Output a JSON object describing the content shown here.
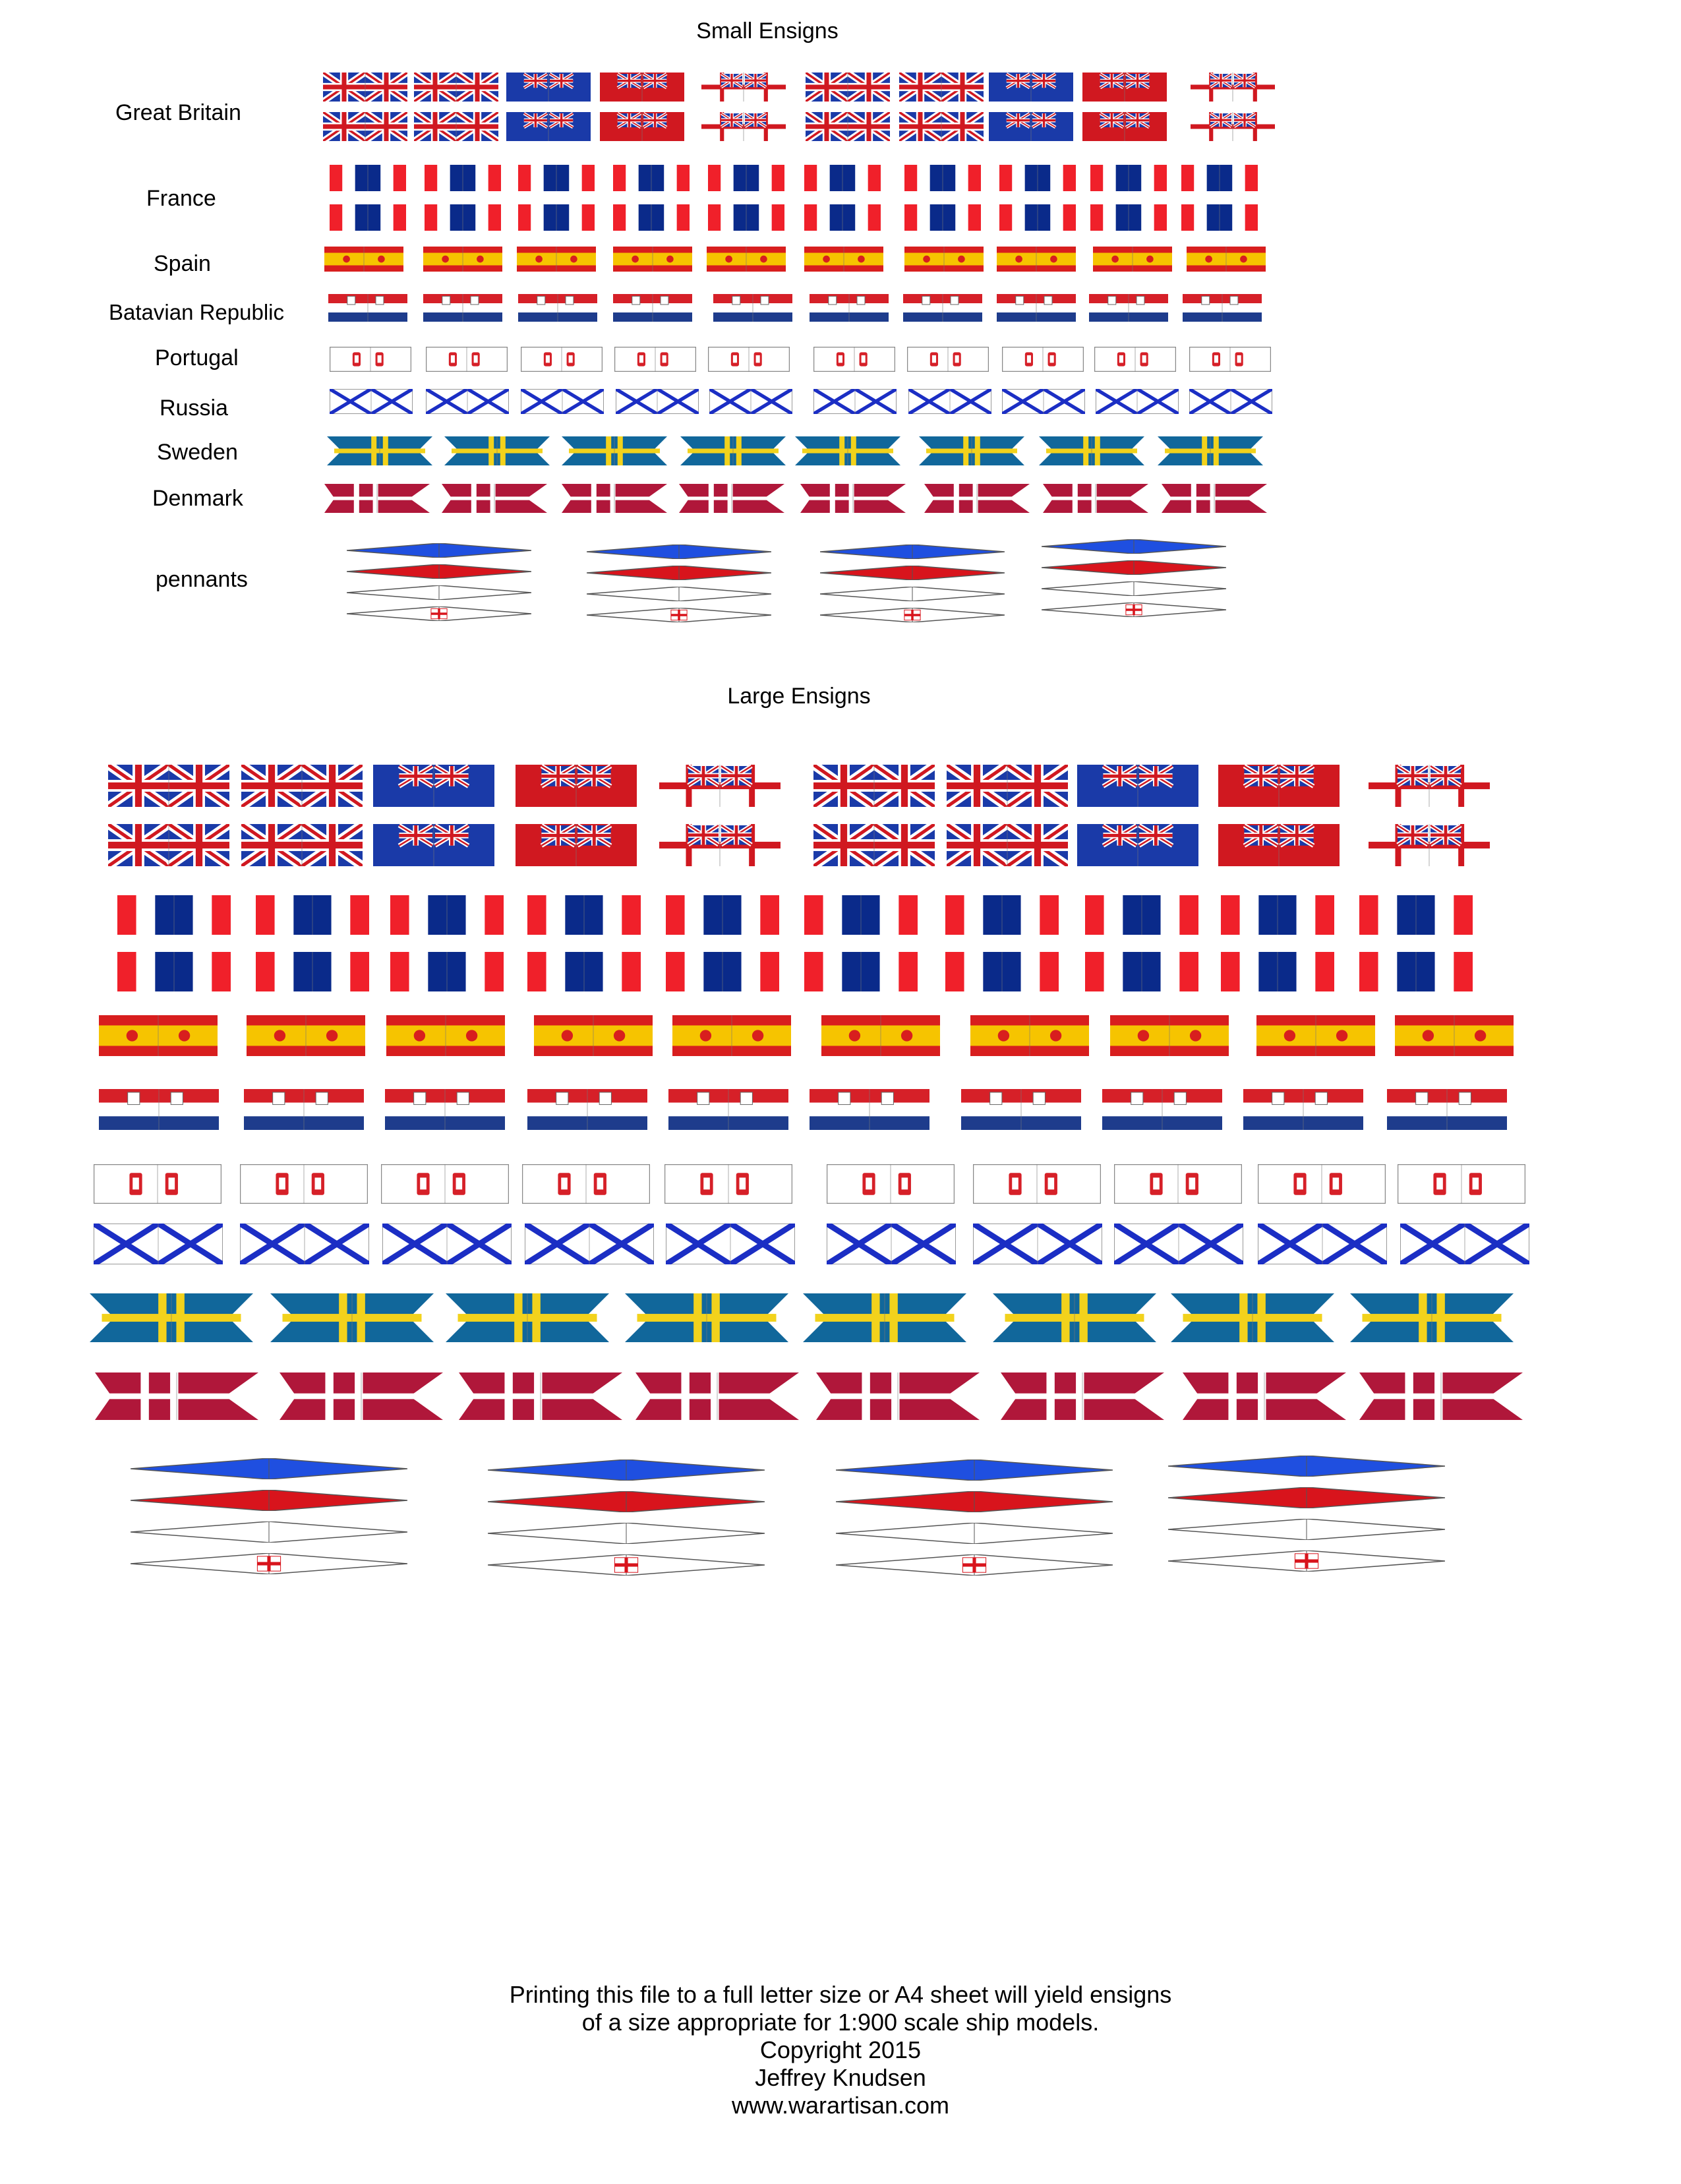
{
  "small_section": {
    "title": "Small Ensigns",
    "labels": {
      "great_britain": "Great Britain",
      "france": "France",
      "spain": "Spain",
      "batavian_republic": "Batavian Republic",
      "portugal": "Portugal",
      "russia": "Russia",
      "sweden": "Sweden",
      "denmark": "Denmark",
      "pennants": "pennants"
    }
  },
  "large_section": {
    "title": "Large Ensigns"
  },
  "footer": {
    "line1": "Printing this file to a full letter size or A4 sheet will yield ensigns",
    "line2": "of a size appropriate for 1:900 scale ship models.",
    "line3": "Copyright 2015",
    "line4": "Jeffrey Knudsen",
    "line5": "www.warartisan.com"
  },
  "colors": {
    "british_red": "#d01820",
    "british_blue": "#1a3aa8",
    "french_blue": "#0a2a8a",
    "french_red": "#f0202a",
    "spain_red": "#d81e1e",
    "spain_yellow": "#f6c400",
    "dutch_red": "#d62028",
    "dutch_blue": "#1e3c8c",
    "russia_blue": "#1b2ec4",
    "sweden_blue": "#11679b",
    "sweden_yellow": "#f2d21c",
    "denmark_red": "#b0173a",
    "pennant_blue": "#1f4fe0",
    "pennant_red": "#d8141c"
  },
  "gb_ensign_pattern": [
    "union-jack",
    "union-jack",
    "blue-ensign",
    "red-ensign",
    "white-ensign",
    "union-jack",
    "union-jack",
    "blue-ensign",
    "red-ensign",
    "white-ensign"
  ],
  "pennant_set": [
    "blue-pennant",
    "red-pennant",
    "white-pennant",
    "st-george-pennant"
  ]
}
